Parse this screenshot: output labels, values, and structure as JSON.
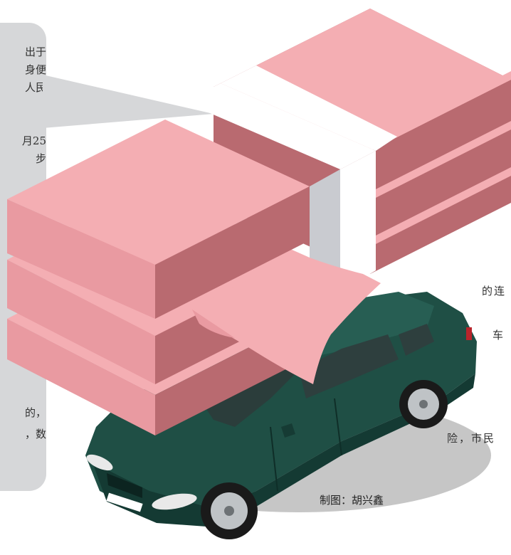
{
  "left_bubble": {
    "lines": [
      "出于",
      "身便",
      "人民",
      "月25",
      "步",
      "的，",
      "，数"
    ]
  },
  "right_fragments": {
    "line_1": "的连",
    "line_2": "车",
    "line_3": "险，市民"
  },
  "credit": "制图：胡兴鑫",
  "colors": {
    "bubble": "#d6d7d9",
    "money_top": "#f4aeb3",
    "money_side_light": "#e99aa1",
    "money_side_dark": "#b96a70",
    "band": "#ffffff",
    "band_side": "#c9cbd0",
    "car_body": "#1f4f45",
    "car_shadow": "#aaaaaa"
  },
  "icons": [
    "money-stack-illustration",
    "car-illustration"
  ]
}
